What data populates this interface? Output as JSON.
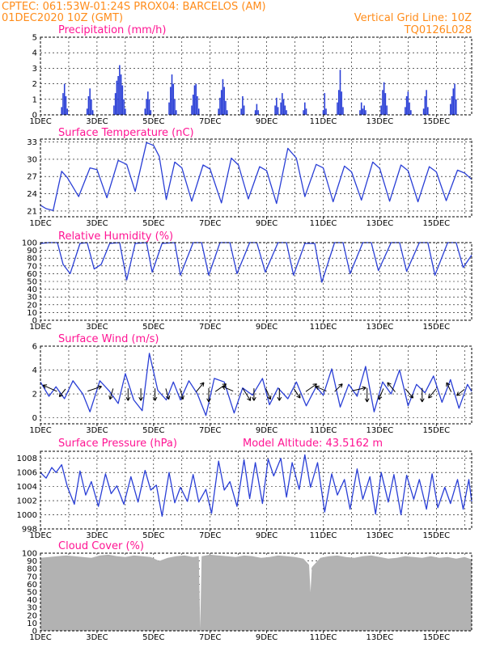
{
  "header": {
    "line1_left": "CPTEC:   061:53W-01:24S   PROX04: BARCELOS (AM)",
    "line2_left": "01DEC2020 10Z (GMT)",
    "line2_right": "Vertical Grid Line: 10Z",
    "line3_right": "TQ0126L028"
  },
  "colors": {
    "header": "#ff8c1a",
    "title": "#ff1493",
    "series": "#2a3fd6",
    "cloud": "#b2b2b2"
  },
  "x_axis_labels": [
    "1DEC",
    "3DEC",
    "5DEC",
    "7DEC",
    "9DEC",
    "11DEC",
    "13DEC",
    "15DEC"
  ],
  "chart_data": [
    {
      "type": "bar",
      "title": "Precipitation (mm/h)",
      "ylim": [
        0,
        5
      ],
      "yticks": [
        0,
        1,
        2,
        3,
        4,
        5
      ],
      "xlim_days": [
        0,
        15.25
      ],
      "x": [
        0.75,
        0.8,
        0.85,
        0.9,
        0.95,
        1.65,
        1.7,
        1.75,
        1.8,
        1.85,
        2.6,
        2.65,
        2.7,
        2.75,
        2.8,
        2.85,
        2.9,
        2.95,
        3.0,
        3.7,
        3.75,
        3.8,
        3.85,
        3.9,
        4.55,
        4.6,
        4.65,
        4.7,
        4.75,
        4.8,
        5.35,
        5.4,
        5.45,
        5.5,
        5.55,
        5.6,
        6.3,
        6.35,
        6.4,
        6.45,
        6.5,
        6.55,
        6.6,
        7.1,
        7.15,
        7.2,
        7.6,
        7.65,
        7.7,
        8.3,
        8.35,
        8.4,
        8.5,
        8.55,
        8.6,
        8.65,
        8.7,
        9.3,
        9.35,
        9.4,
        10.0,
        10.05,
        10.1,
        10.5,
        10.55,
        10.6,
        10.65,
        10.7,
        11.3,
        11.35,
        11.4,
        11.45,
        11.5,
        12.05,
        12.1,
        12.15,
        12.2,
        12.25,
        12.9,
        12.95,
        13.0,
        13.05,
        13.1,
        13.55,
        13.6,
        13.65,
        13.7,
        14.5,
        14.55,
        14.6,
        14.65,
        14.7
      ],
      "values": [
        0.5,
        1.4,
        2.0,
        1.2,
        0.4,
        0.4,
        1.2,
        1.7,
        1.0,
        0.3,
        0.6,
        1.4,
        2.2,
        2.5,
        3.2,
        2.6,
        1.9,
        1.0,
        0.4,
        0.4,
        1.0,
        1.5,
        1.0,
        0.3,
        0.8,
        1.8,
        2.6,
        2.0,
        1.0,
        0.3,
        0.6,
        1.3,
        1.9,
        2.0,
        1.2,
        0.4,
        0.4,
        1.1,
        1.6,
        2.3,
        1.8,
        0.9,
        0.3,
        0.4,
        1.2,
        0.6,
        0.3,
        0.7,
        0.3,
        0.6,
        1.1,
        0.5,
        0.8,
        1.4,
        1.0,
        0.6,
        0.3,
        0.3,
        0.8,
        0.4,
        0.3,
        1.4,
        0.4,
        0.8,
        1.6,
        2.9,
        1.5,
        0.5,
        0.3,
        0.8,
        0.4,
        0.6,
        0.3,
        0.6,
        1.6,
        2.1,
        1.4,
        0.6,
        0.5,
        1.2,
        1.5,
        0.8,
        0.3,
        0.4,
        1.2,
        1.6,
        0.5,
        0.7,
        1.2,
        1.7,
        2.0,
        1.0
      ]
    },
    {
      "type": "line",
      "title": "Surface Temperature (nC)",
      "ylim": [
        20,
        33.5
      ],
      "yticks": [
        21,
        24,
        27,
        30,
        33
      ],
      "x": [
        0,
        0.2,
        0.45,
        0.75,
        0.95,
        1.35,
        1.75,
        2.0,
        2.35,
        2.75,
        3.05,
        3.35,
        3.75,
        4.0,
        4.2,
        4.45,
        4.75,
        5.0,
        5.35,
        5.75,
        6.0,
        6.4,
        6.75,
        7.0,
        7.35,
        7.75,
        8.0,
        8.35,
        8.75,
        9.05,
        9.35,
        9.75,
        10.0,
        10.35,
        10.75,
        11.0,
        11.35,
        11.75,
        12.0,
        12.35,
        12.75,
        13.0,
        13.35,
        13.75,
        14.0,
        14.35,
        14.75,
        15.0,
        15.25
      ],
      "values": [
        22.0,
        21.4,
        21.1,
        27.9,
        26.8,
        23.5,
        28.5,
        28.2,
        23.3,
        29.8,
        29.1,
        24.4,
        32.9,
        32.4,
        30.5,
        23.0,
        29.5,
        28.5,
        22.7,
        29.0,
        28.3,
        22.4,
        30.2,
        29.0,
        23.1,
        28.7,
        28.0,
        22.3,
        31.9,
        30.2,
        23.5,
        29.1,
        28.5,
        22.6,
        28.8,
        27.8,
        22.9,
        29.5,
        28.4,
        22.7,
        29.0,
        28.0,
        22.6,
        28.7,
        27.8,
        22.8,
        28.1,
        27.6,
        26.5
      ]
    },
    {
      "type": "line",
      "title": "Relative Humidity (%)",
      "ylim": [
        0,
        100
      ],
      "yticks": [
        0,
        10,
        20,
        30,
        40,
        50,
        60,
        70,
        80,
        90,
        100
      ],
      "x": [
        0,
        0.3,
        0.6,
        0.8,
        1.05,
        1.4,
        1.65,
        1.9,
        2.15,
        2.45,
        2.8,
        3.05,
        3.35,
        3.75,
        3.95,
        4.3,
        4.75,
        4.95,
        5.4,
        5.7,
        5.95,
        6.35,
        6.7,
        6.95,
        7.4,
        7.65,
        7.95,
        8.4,
        8.7,
        8.95,
        9.35,
        9.7,
        9.95,
        10.4,
        10.7,
        10.95,
        11.4,
        11.7,
        11.95,
        12.4,
        12.7,
        12.95,
        13.4,
        13.7,
        13.95,
        14.4,
        14.7,
        14.95,
        15.25
      ],
      "values": [
        99,
        100,
        100,
        72,
        60,
        99,
        100,
        66,
        72,
        99,
        100,
        52,
        99,
        100,
        62,
        99,
        100,
        58,
        100,
        100,
        58,
        100,
        100,
        60,
        100,
        100,
        62,
        100,
        100,
        58,
        99,
        99,
        49,
        100,
        100,
        60,
        100,
        100,
        64,
        100,
        100,
        63,
        100,
        100,
        58,
        100,
        100,
        68,
        84
      ]
    },
    {
      "type": "line",
      "title": "Surface Wind (m/s)",
      "ylim": [
        -0.5,
        6
      ],
      "yticks": [
        0,
        2,
        4,
        6
      ],
      "x": [
        0,
        0.3,
        0.55,
        0.85,
        1.15,
        1.5,
        1.75,
        2.1,
        2.45,
        2.75,
        3.0,
        3.3,
        3.6,
        3.85,
        4.15,
        4.45,
        4.7,
        4.95,
        5.25,
        5.55,
        5.85,
        6.15,
        6.5,
        6.85,
        7.15,
        7.5,
        7.85,
        8.1,
        8.4,
        8.75,
        9.05,
        9.4,
        9.75,
        10.0,
        10.3,
        10.6,
        10.9,
        11.2,
        11.5,
        11.8,
        12.1,
        12.4,
        12.7,
        13.0,
        13.3,
        13.6,
        13.9,
        14.2,
        14.5,
        14.8,
        15.1,
        15.25
      ],
      "values": [
        3.0,
        1.8,
        2.6,
        1.6,
        3.1,
        2.0,
        0.5,
        3.1,
        2.2,
        1.2,
        3.7,
        1.5,
        0.6,
        5.4,
        2.3,
        1.5,
        3.0,
        1.5,
        3.1,
        2.0,
        0.2,
        3.3,
        3.0,
        0.4,
        2.5,
        1.9,
        3.3,
        1.1,
        2.5,
        1.6,
        3.0,
        1.0,
        2.6,
        1.9,
        4.1,
        0.9,
        2.8,
        1.8,
        4.3,
        0.5,
        3.0,
        2.0,
        4.0,
        1.0,
        2.8,
        2.1,
        3.5,
        1.3,
        3.2,
        0.8,
        2.8,
        2.2
      ],
      "vector_x": [
        0.5,
        0.85,
        1.75,
        2.55,
        3.1,
        3.55,
        4.05,
        4.45,
        4.95,
        5.55,
        5.95,
        6.25,
        6.75,
        7.2,
        7.55,
        8.0,
        8.45,
        9.0,
        9.45,
        10.05,
        10.45,
        11.1,
        11.55,
        12.1,
        12.5,
        12.95,
        13.5,
        13.95,
        14.5,
        14.95
      ],
      "vector_u": [
        -0.9,
        -0.4,
        0.9,
        -0.2,
        0.0,
        0.0,
        0.0,
        0.2,
        0.2,
        0.5,
        0.0,
        0.7,
        -0.7,
        0.5,
        0.0,
        0.3,
        0.0,
        0.4,
        0.7,
        -0.7,
        0.5,
        0.9,
        0.0,
        -0.3,
        -0.5,
        0.5,
        0.0,
        -0.5,
        -0.3,
        -0.5
      ],
      "vector_v": [
        0.4,
        -0.5,
        0.3,
        -0.7,
        -0.8,
        -0.8,
        -0.8,
        -0.7,
        -0.7,
        0.6,
        -0.9,
        0.5,
        0.3,
        -0.8,
        -0.8,
        -0.7,
        -0.8,
        -0.6,
        0.5,
        0.3,
        0.5,
        0.2,
        -0.9,
        -0.7,
        0.6,
        -0.6,
        -0.9,
        -0.6,
        0.6,
        -0.4
      ]
    },
    {
      "type": "line",
      "title": "Surface Pressure (hPa)",
      "annotation": "Model Altitude: 43.5162 m",
      "ylim": [
        998,
        1009
      ],
      "yticks": [
        998,
        1000,
        1002,
        1004,
        1006,
        1008
      ],
      "x": [
        0,
        0.2,
        0.4,
        0.55,
        0.75,
        0.95,
        1.2,
        1.4,
        1.6,
        1.8,
        2.05,
        2.3,
        2.5,
        2.7,
        2.95,
        3.2,
        3.45,
        3.7,
        3.9,
        4.1,
        4.3,
        4.55,
        4.75,
        4.95,
        5.2,
        5.4,
        5.6,
        5.85,
        6.05,
        6.3,
        6.5,
        6.7,
        6.95,
        7.2,
        7.4,
        7.6,
        7.85,
        8.05,
        8.25,
        8.5,
        8.7,
        8.9,
        9.15,
        9.35,
        9.55,
        9.8,
        10.05,
        10.3,
        10.5,
        10.75,
        10.95,
        11.2,
        11.4,
        11.65,
        11.85,
        12.05,
        12.3,
        12.5,
        12.75,
        12.95,
        13.2,
        13.4,
        13.65,
        13.85,
        14.05,
        14.3,
        14.5,
        14.75,
        14.95,
        15.15,
        15.25
      ],
      "values": [
        1006.0,
        1005.2,
        1006.7,
        1006.0,
        1007.1,
        1004.0,
        1001.5,
        1006.2,
        1002.8,
        1004.7,
        1001.2,
        1005.8,
        1003.0,
        1004.1,
        1001.5,
        1005.4,
        1001.8,
        1006.3,
        1003.5,
        1004.2,
        999.8,
        1006.0,
        1001.7,
        1003.9,
        1001.9,
        1005.7,
        1001.8,
        1003.6,
        1000.2,
        1007.6,
        1003.5,
        1004.7,
        1001.2,
        1007.8,
        1002.3,
        1007.4,
        1001.6,
        1007.9,
        1005.5,
        1008.0,
        1002.5,
        1007.4,
        1003.6,
        1008.5,
        1003.9,
        1007.4,
        1000.4,
        1005.8,
        1002.8,
        1005.0,
        1000.8,
        1006.5,
        1002.2,
        1005.4,
        1000.1,
        1006.0,
        1001.8,
        1005.7,
        1000.0,
        1005.6,
        1002.2,
        1005.0,
        1000.8,
        1005.8,
        1001.0,
        1003.9,
        1001.6,
        1005.0,
        1000.8,
        1005.0,
        1001.9
      ]
    },
    {
      "type": "area",
      "title": "Cloud Cover (%)",
      "ylim": [
        0,
        100
      ],
      "yticks": [
        0,
        10,
        20,
        30,
        40,
        50,
        60,
        70,
        80,
        90,
        100
      ],
      "x": [
        0,
        0.3,
        0.6,
        0.9,
        1.2,
        1.5,
        1.8,
        2.1,
        2.4,
        2.7,
        3.0,
        3.3,
        3.6,
        3.9,
        4.2,
        4.5,
        4.8,
        5.1,
        5.4,
        5.6,
        5.65,
        5.7,
        6.0,
        6.3,
        6.6,
        6.9,
        7.2,
        7.5,
        7.8,
        8.1,
        8.4,
        8.7,
        9.0,
        9.3,
        9.5,
        9.55,
        9.6,
        9.9,
        10.2,
        10.5,
        10.8,
        11.1,
        11.4,
        11.7,
        12.0,
        12.3,
        12.6,
        12.9,
        13.2,
        13.5,
        13.8,
        14.1,
        14.4,
        14.7,
        15.0,
        15.25
      ],
      "values": [
        94,
        95,
        96,
        97,
        96,
        95,
        94,
        97,
        98,
        96,
        95,
        97,
        96,
        95,
        90,
        94,
        96,
        97,
        95,
        96,
        3,
        96,
        98,
        97,
        96,
        95,
        97,
        96,
        94,
        95,
        97,
        96,
        95,
        93,
        85,
        50,
        82,
        94,
        96,
        97,
        95,
        94,
        96,
        97,
        95,
        93,
        94,
        96,
        95,
        94,
        96,
        94,
        95,
        93,
        95,
        92
      ]
    }
  ]
}
